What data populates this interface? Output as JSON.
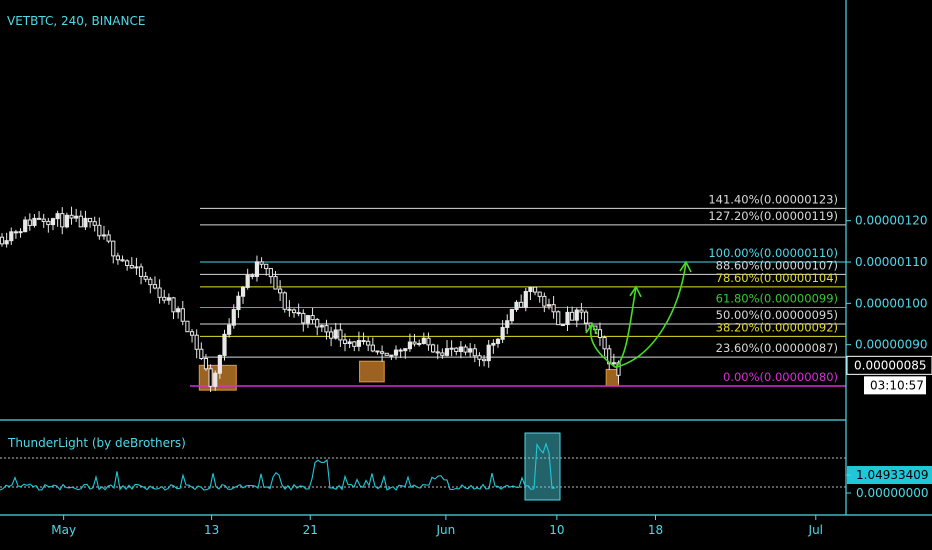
{
  "symbol_title": "VETBTC, 240, BINANCE",
  "indicator": {
    "title": "ThunderLight (by deBrothers)",
    "current_value": "1.04933409",
    "zero_value": "0.00000000",
    "line_color": "#1ec8d8"
  },
  "price": {
    "current_tag": "0.00000085",
    "countdown_tag": "03:10:57",
    "axis_labels": [
      "0.00000120",
      "0.00000110",
      "0.00000100",
      "0.00000090"
    ]
  },
  "x_axis_labels": [
    "May",
    "13",
    "21",
    "Jun",
    "10",
    "18",
    "Jul"
  ],
  "fib_levels": [
    {
      "text": "141.40%(0.00000123)",
      "color": "#d8d8d8"
    },
    {
      "text": "127.20%(0.00000119)",
      "color": "#d8d8d8"
    },
    {
      "text": "100.00%(0.00000110)",
      "color": "#4dd9e8"
    },
    {
      "text": "88.60%(0.00000107)",
      "color": "#d8d8d8"
    },
    {
      "text": "78.60%(0.00000104)",
      "color": "#e6dd2a"
    },
    {
      "text": "61.80%(0.00000099)",
      "color": "#38c838"
    },
    {
      "text": "50.00%(0.00000095)",
      "color": "#d8d8d8"
    },
    {
      "text": "38.20%(0.00000092)",
      "color": "#e6dd2a"
    },
    {
      "text": "23.60%(0.00000087)",
      "color": "#d8d8d8"
    },
    {
      "text": "0.00%(0.00000080)",
      "color": "#d62fd6"
    }
  ],
  "colors": {
    "background": "#000000",
    "accent": "#4dd9e8",
    "candle": "#e8e8e8",
    "support_box": "#c27a2a",
    "projection_arrows": "#44dd22"
  },
  "chart_data": {
    "type": "line",
    "title": "VETBTC, 240, BINANCE",
    "price_path": {
      "x": [
        "Apr 26",
        "Apr 29",
        "May 3",
        "May 5",
        "May 7",
        "May 9",
        "May 11",
        "May 12",
        "May 13",
        "May 15",
        "May 16",
        "May 17",
        "May 19",
        "May 22",
        "May 25",
        "May 27",
        "May 29",
        "Jun 2",
        "Jun 4",
        "Jun 6",
        "Jun 8",
        "Jun 10",
        "Jun 12",
        "Jun 13",
        "Jun 14",
        "Jun 15"
      ],
      "y": [
        1.16e-06,
        1.21e-06,
        1.19e-06,
        1.13e-06,
        1.07e-06,
        1.02e-06,
        9.5e-07,
        8.8e-07,
        8e-07,
        1.02e-06,
        1.06e-06,
        1.1e-06,
        9.9e-07,
        9.4e-07,
        9e-07,
        8.6e-07,
        9.1e-07,
        8.8e-07,
        8.7e-07,
        9.6e-07,
        1.04e-06,
        9.6e-07,
        9.7e-07,
        9.3e-07,
        8.8e-07,
        8.3e-07
      ]
    },
    "fibonacci": [
      {
        "ratio": 1.414,
        "price": 1.23e-06
      },
      {
        "ratio": 1.272,
        "price": 1.19e-06
      },
      {
        "ratio": 1.0,
        "price": 1.1e-06
      },
      {
        "ratio": 0.886,
        "price": 1.07e-06
      },
      {
        "ratio": 0.786,
        "price": 1.04e-06
      },
      {
        "ratio": 0.618,
        "price": 9.9e-07
      },
      {
        "ratio": 0.5,
        "price": 9.5e-07
      },
      {
        "ratio": 0.382,
        "price": 9.2e-07
      },
      {
        "ratio": 0.236,
        "price": 8.7e-07
      },
      {
        "ratio": 0.0,
        "price": 8e-07
      }
    ],
    "support_zones": [
      {
        "from": "May 12",
        "to": "May 15",
        "low": 7.9e-07,
        "high": 8.5e-07
      },
      {
        "from": "May 25",
        "to": "May 27",
        "low": 8.1e-07,
        "high": 8.6e-07
      },
      {
        "from": "Jun 14",
        "to": "Jun 15",
        "low": 8e-07,
        "high": 8.4e-07
      }
    ],
    "projection_targets": [
      9.5e-07,
      1.04e-06,
      1.1e-06
    ],
    "ylim": [
      7.7e-07,
      1.24e-06
    ],
    "current_price": 8.5e-07,
    "grid": false,
    "indicator_series": {
      "name": "ThunderLight (by deBrothers)",
      "last": 1.04933409
    }
  }
}
